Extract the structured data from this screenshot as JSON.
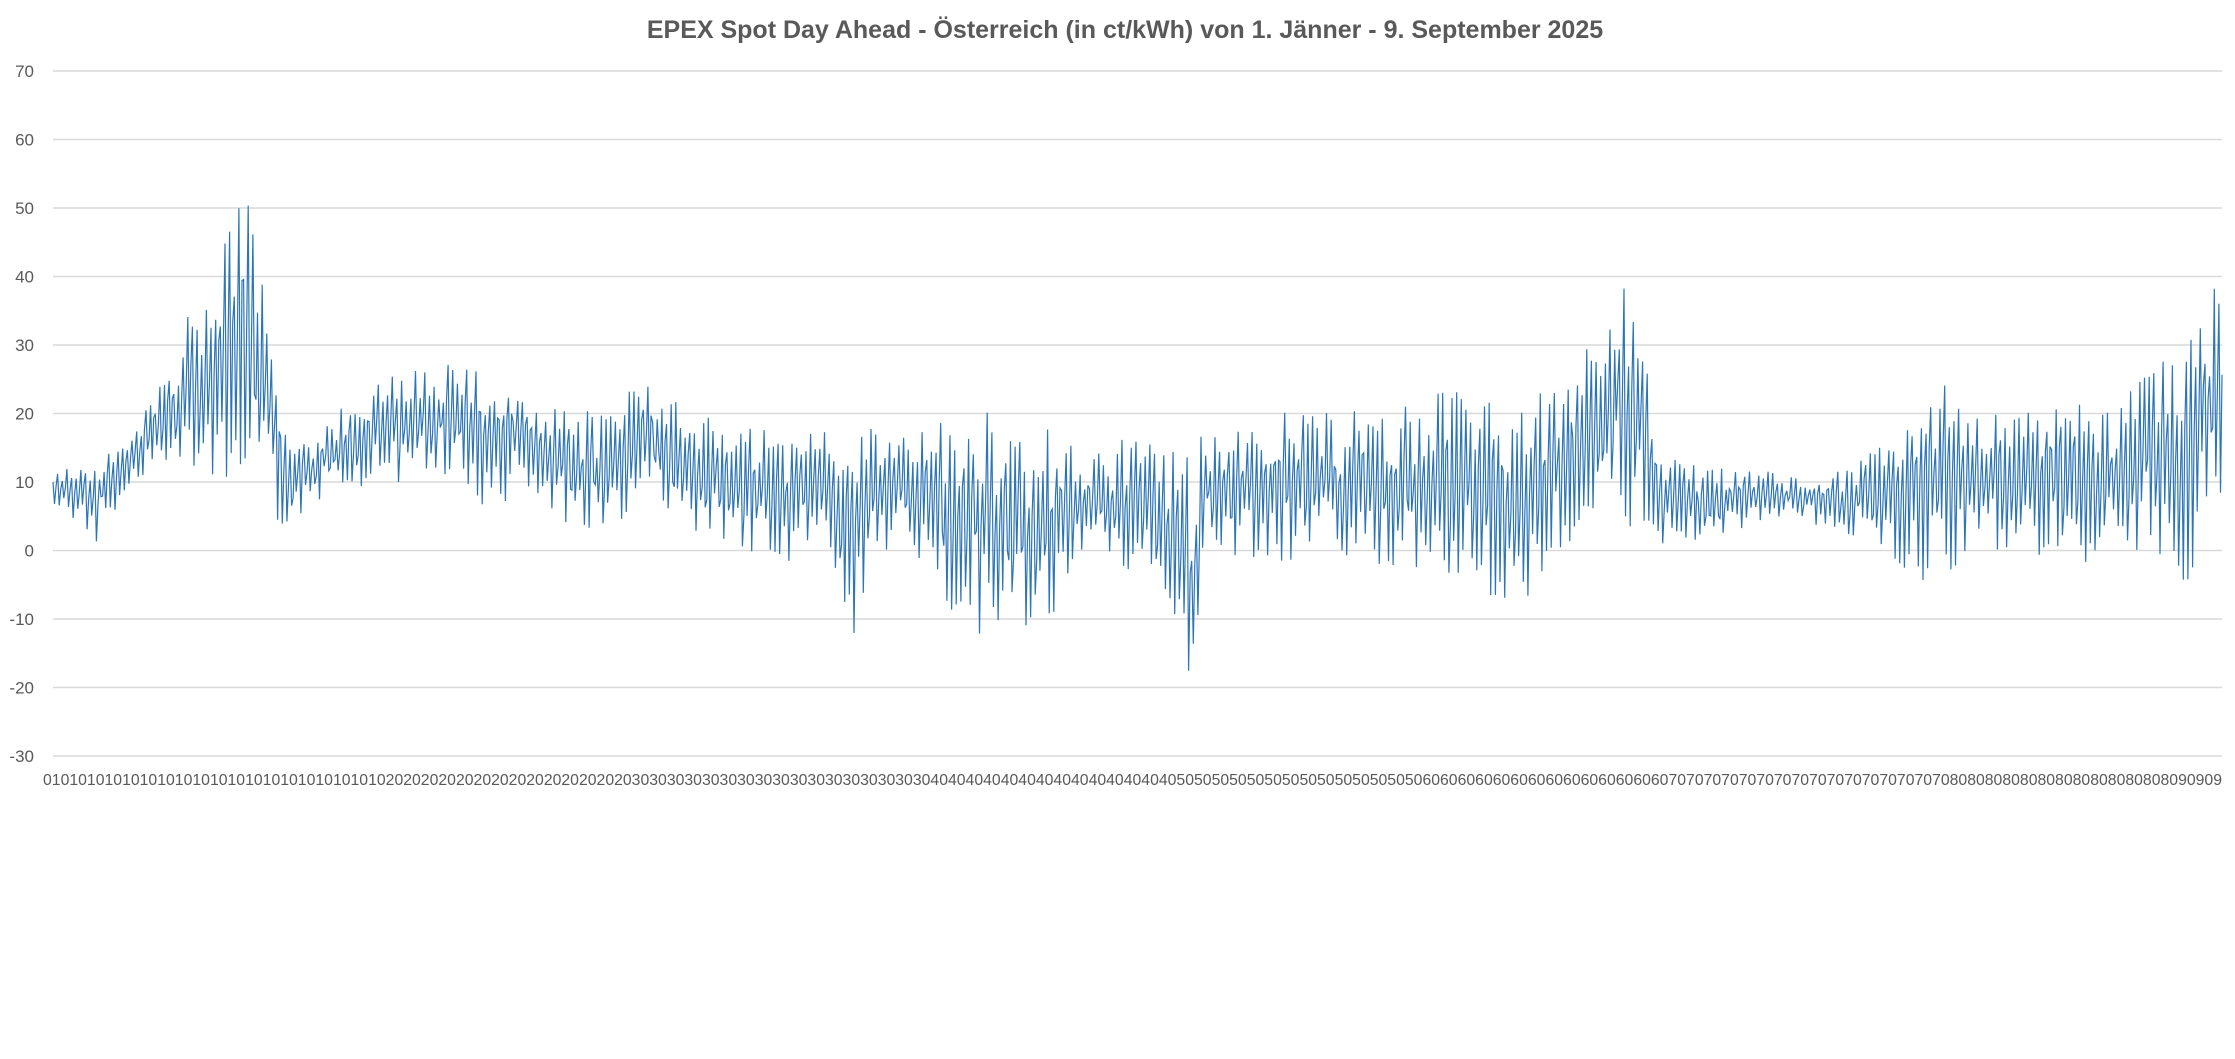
{
  "chart_data": {
    "type": "line",
    "title": "EPEX Spot Day Ahead - Österreich (in ct/kWh) von 1. Jänner - 9. September 2025",
    "xlabel": "",
    "ylabel": "",
    "ylim": [
      -30,
      70
    ],
    "yticks": [
      70,
      60,
      50,
      40,
      30,
      20,
      10,
      0,
      -10,
      -20,
      -30
    ],
    "x_axis_label_text": "01010101010101010101010101010101010101020202020202020202020202020203030303030303030303030303030303030404040404040404040404040404050505050505050505050505050506060606060606060606060606060707070707070707070707070707070708080808080808080808080808090909",
    "grid": true,
    "legend": "none",
    "line_color": "#2E75B6",
    "series": [
      {
        "sampling": "daily [min, max] in ct/kWh, 1 Jan - 9 Sep 2025 (approximate)",
        "x": [
          "2025-01-01",
          "2025-01-06",
          "2025-01-10",
          "2025-01-15",
          "2025-01-20",
          "2025-01-23",
          "2025-01-28",
          "2025-02-01",
          "2025-02-05",
          "2025-02-10",
          "2025-02-15",
          "2025-02-20",
          "2025-02-25",
          "2025-03-01",
          "2025-03-05",
          "2025-03-10",
          "2025-03-15",
          "2025-03-20",
          "2025-03-25",
          "2025-03-30",
          "2025-04-01",
          "2025-04-03",
          "2025-04-05",
          "2025-04-10",
          "2025-04-15",
          "2025-04-20",
          "2025-04-25",
          "2025-04-30",
          "2025-05-05",
          "2025-05-10",
          "2025-05-12",
          "2025-05-13",
          "2025-05-20",
          "2025-05-25",
          "2025-05-31",
          "2025-06-05",
          "2025-06-10",
          "2025-06-15",
          "2025-06-20",
          "2025-06-25",
          "2025-06-30",
          "2025-07-05",
          "2025-07-10",
          "2025-07-15",
          "2025-07-20",
          "2025-07-25",
          "2025-07-31",
          "2025-08-05",
          "2025-08-10",
          "2025-08-15",
          "2025-08-20",
          "2025-08-25",
          "2025-08-31",
          "2025-09-03",
          "2025-09-07"
        ],
        "values": [
          [
            7,
            11
          ],
          [
            1,
            15
          ],
          [
            10,
            16
          ],
          [
            11,
            31
          ],
          [
            10,
            42
          ],
          [
            12,
            56
          ],
          [
            2,
            16
          ],
          [
            8,
            18
          ],
          [
            9,
            24
          ],
          [
            9,
            26
          ],
          [
            11,
            28
          ],
          [
            6,
            27
          ],
          [
            9,
            22
          ],
          [
            2,
            22
          ],
          [
            0,
            21
          ],
          [
            9,
            26
          ],
          [
            0,
            21
          ],
          [
            0,
            18
          ],
          [
            -2,
            18
          ],
          [
            -1,
            18
          ],
          [
            -5,
            17
          ],
          [
            -14,
            18
          ],
          [
            0,
            18
          ],
          [
            -1,
            17
          ],
          [
            -14,
            24
          ],
          [
            -11,
            19
          ],
          [
            -12,
            18
          ],
          [
            0,
            14
          ],
          [
            -6,
            18
          ],
          [
            -12,
            15
          ],
          [
            -25,
            15
          ],
          [
            -2,
            18
          ],
          [
            -2,
            21
          ],
          [
            -1,
            20
          ],
          [
            -2,
            21
          ],
          [
            -3,
            21
          ],
          [
            -5,
            24
          ],
          [
            -8,
            23
          ],
          [
            -9,
            23
          ],
          [
            1,
            27
          ],
          [
            2,
            44
          ],
          [
            1,
            14
          ],
          [
            0,
            12
          ],
          [
            4,
            12
          ],
          [
            5,
            11
          ],
          [
            2,
            12
          ],
          [
            -1,
            16
          ],
          [
            -6,
            27
          ],
          [
            -1,
            21
          ],
          [
            -1,
            20
          ],
          [
            -2,
            22
          ],
          [
            -4,
            22
          ],
          [
            -1,
            28
          ],
          [
            -5,
            30
          ],
          [
            8,
            41
          ]
        ]
      }
    ]
  }
}
